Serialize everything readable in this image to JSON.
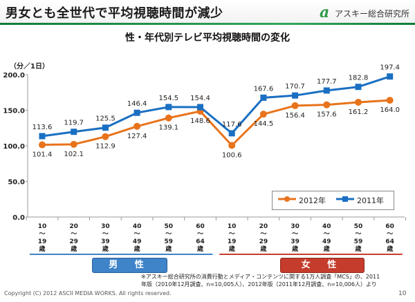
{
  "header": {
    "title": "男女とも全世代で平均視聴時間が減少",
    "logo_mark": "a",
    "logo_text": "アスキー総合研究所"
  },
  "colors": {
    "series_2012": "#e8731b",
    "series_2011": "#1a6fc2",
    "male_box": "#3f83c9",
    "female_box": "#c63c2c",
    "header_line": "#1d8f46"
  },
  "chart_data": {
    "type": "line",
    "title": "性・年代別テレビ平均視聴時間の変化",
    "ylabel": "（分／1日）",
    "ylim": [
      0,
      200
    ],
    "yticks": [
      "0.0",
      "50.0",
      "100.0",
      "150.0",
      "200.0"
    ],
    "grid": false,
    "legend_position": "bottom-right",
    "categories": [
      "10〜19歳",
      "20〜29歳",
      "30〜39歳",
      "40〜49歳",
      "50〜59歳",
      "60〜64歳",
      "10〜19歳",
      "20〜29歳",
      "30〜39歳",
      "40〜49歳",
      "50〜59歳",
      "60〜64歳"
    ],
    "category_labels": [
      [
        "10",
        "〜",
        "19",
        "歳"
      ],
      [
        "20",
        "〜",
        "29",
        "歳"
      ],
      [
        "30",
        "〜",
        "39",
        "歳"
      ],
      [
        "40",
        "〜",
        "49",
        "歳"
      ],
      [
        "50",
        "〜",
        "59",
        "歳"
      ],
      [
        "60",
        "〜",
        "64",
        "歳"
      ],
      [
        "10",
        "〜",
        "19",
        "歳"
      ],
      [
        "20",
        "〜",
        "29",
        "歳"
      ],
      [
        "30",
        "〜",
        "39",
        "歳"
      ],
      [
        "40",
        "〜",
        "49",
        "歳"
      ],
      [
        "50",
        "〜",
        "59",
        "歳"
      ],
      [
        "60",
        "〜",
        "64",
        "歳"
      ]
    ],
    "series": [
      {
        "name": "2012年",
        "marker": "circle",
        "values": [
          101.4,
          102.1,
          112.9,
          127.4,
          139.1,
          148.6,
          100.6,
          144.5,
          156.4,
          157.6,
          161.2,
          164.0
        ],
        "labels": [
          "101.4",
          "102.1",
          "112.9",
          "127.4",
          "139.1",
          "148.6",
          "100.6",
          "144.5",
          "156.4",
          "157.6",
          "161.2",
          "164.0"
        ]
      },
      {
        "name": "2011年",
        "marker": "square",
        "values": [
          113.6,
          119.7,
          125.5,
          146.4,
          154.5,
          154.4,
          117.6,
          167.6,
          170.7,
          177.7,
          182.8,
          197.4
        ],
        "labels": [
          "113.6",
          "119.7",
          "125.5",
          "146.4",
          "154.5",
          "154.4",
          "117.6",
          "167.6",
          "170.7",
          "177.7",
          "182.8",
          "197.4"
        ]
      }
    ],
    "groups": [
      {
        "label": "男 性",
        "range": [
          0,
          5
        ]
      },
      {
        "label": "女 性",
        "range": [
          6,
          11
        ]
      }
    ]
  },
  "note_lines": [
    "※アスキー総合研究所の消費行動とメディア・コンテンツに関する1万人調査「MCS」の、2011",
    "年版（2010年12月調査、n=10,005人）、2012年版（2011年12月調査、n=10,006人）より"
  ],
  "footer": {
    "copyright": "Copyright (C) 2012 ASCII MEDIA WORKS. All rights reserved.",
    "page": "10"
  }
}
